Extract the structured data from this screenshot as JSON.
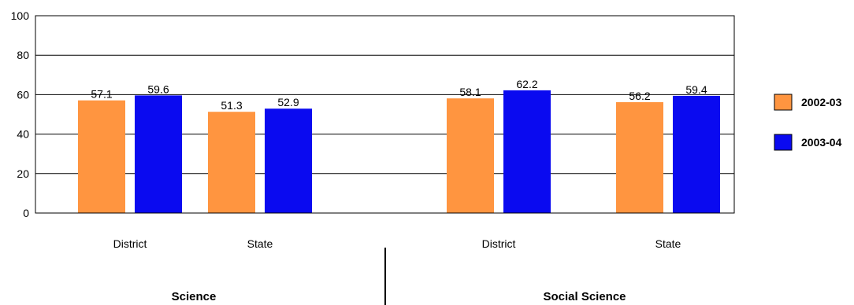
{
  "chart_data": {
    "type": "bar",
    "title": "",
    "xlabel": "",
    "ylabel": "",
    "ylim": [
      0,
      100
    ],
    "yticks": [
      0,
      20,
      40,
      60,
      80,
      100
    ],
    "grid": true,
    "legend_position": "right",
    "categories": [
      "District",
      "State",
      "District",
      "State"
    ],
    "groups": [
      {
        "label": "Science",
        "categories": [
          0,
          1
        ]
      },
      {
        "label": "Social Science",
        "categories": [
          2,
          3
        ]
      }
    ],
    "series": [
      {
        "name": "2002-03",
        "color": "#FF9540",
        "values": [
          57.1,
          51.3,
          58.1,
          56.2
        ]
      },
      {
        "name": "2003-04",
        "color": "#0A0AF0",
        "values": [
          59.6,
          52.9,
          62.2,
          59.4
        ]
      }
    ]
  }
}
